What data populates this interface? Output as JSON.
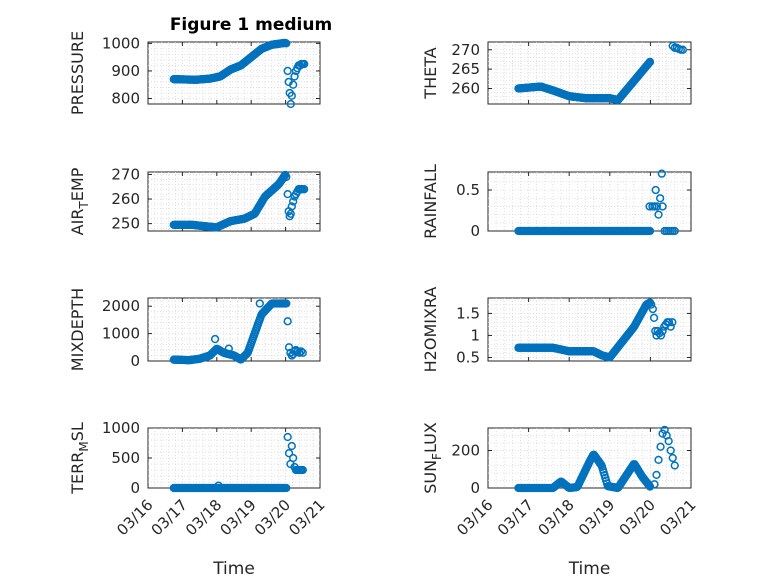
{
  "figure": {
    "title": "Figure 1 medium",
    "marker_color": "#0072bd"
  },
  "chart_data": [
    {
      "type": "scatter",
      "ylabel": "PRESSURE",
      "ylim": [
        780,
        1005
      ],
      "yticks": [
        800,
        900,
        1000
      ],
      "ytick_labels": [
        "800",
        "900",
        "1000"
      ],
      "xlim": [
        0,
        5
      ],
      "xticks": [
        0,
        1,
        2,
        3,
        4,
        5
      ],
      "xtick_labels": [],
      "grid": true,
      "x": [],
      "y": []
    },
    {
      "type": "scatter",
      "ylabel": "THETA",
      "ylim": [
        256,
        272
      ],
      "yticks": [
        260,
        265,
        270
      ],
      "ytick_labels": [
        "260",
        "265",
        "270"
      ],
      "xlim": [
        0,
        5
      ],
      "xticks": [
        0,
        1,
        2,
        3,
        4,
        5
      ],
      "xtick_labels": [],
      "grid": true,
      "x": [],
      "y": []
    },
    {
      "type": "scatter",
      "ylabel": "AIR_TEMP",
      "ylim": [
        247,
        271
      ],
      "yticks": [
        250,
        260,
        270
      ],
      "ytick_labels": [
        "250",
        "260",
        "270"
      ],
      "xlim": [
        0,
        5
      ],
      "xticks": [
        0,
        1,
        2,
        3,
        4,
        5
      ],
      "xtick_labels": [],
      "grid": true,
      "x": [],
      "y": []
    },
    {
      "type": "scatter",
      "ylabel": "RAINFALL",
      "ylim": [
        0,
        0.72
      ],
      "yticks": [
        0,
        0.5
      ],
      "ytick_labels": [
        "0",
        "0.5"
      ],
      "xlim": [
        0,
        5
      ],
      "xticks": [
        0,
        1,
        2,
        3,
        4,
        5
      ],
      "xtick_labels": [],
      "grid": true,
      "x": [],
      "y": []
    },
    {
      "type": "scatter",
      "ylabel": "MIXDEPTH",
      "ylim": [
        0,
        2300
      ],
      "yticks": [
        0,
        1000,
        2000
      ],
      "ytick_labels": [
        "0",
        "1000",
        "2000"
      ],
      "xlim": [
        0,
        5
      ],
      "xticks": [
        0,
        1,
        2,
        3,
        4,
        5
      ],
      "xtick_labels": [],
      "grid": true,
      "x": [],
      "y": []
    },
    {
      "type": "scatter",
      "ylabel": "H2OMIXRA",
      "ylim": [
        0.42,
        1.85
      ],
      "yticks": [
        0.5,
        1,
        1.5
      ],
      "ytick_labels": [
        "0.5",
        "1",
        "1.5"
      ],
      "xlim": [
        0,
        5
      ],
      "xticks": [
        0,
        1,
        2,
        3,
        4,
        5
      ],
      "xtick_labels": [],
      "grid": true,
      "x": [],
      "y": []
    },
    {
      "type": "scatter",
      "ylabel": "TERR_MSL",
      "xlabel": "Time",
      "ylim": [
        0,
        1000
      ],
      "yticks": [
        0,
        500,
        1000
      ],
      "ytick_labels": [
        "0",
        "500",
        "1000"
      ],
      "xlim": [
        0,
        5
      ],
      "xticks": [
        0,
        1,
        2,
        3,
        4,
        5
      ],
      "xtick_labels": [
        "03/16",
        "03/17",
        "03/18",
        "03/19",
        "03/20",
        "03/21"
      ],
      "grid": true,
      "x": [],
      "y": []
    },
    {
      "type": "scatter",
      "ylabel": "SUN_FLUX",
      "xlabel": "Time",
      "ylim": [
        0,
        320
      ],
      "yticks": [
        0,
        200
      ],
      "ytick_labels": [
        "0",
        "200"
      ],
      "xlim": [
        0,
        5
      ],
      "xticks": [
        0,
        1,
        2,
        3,
        4,
        5
      ],
      "xtick_labels": [
        "03/16",
        "03/17",
        "03/18",
        "03/19",
        "03/20",
        "03/21"
      ],
      "grid": true,
      "x": [],
      "y": []
    }
  ]
}
